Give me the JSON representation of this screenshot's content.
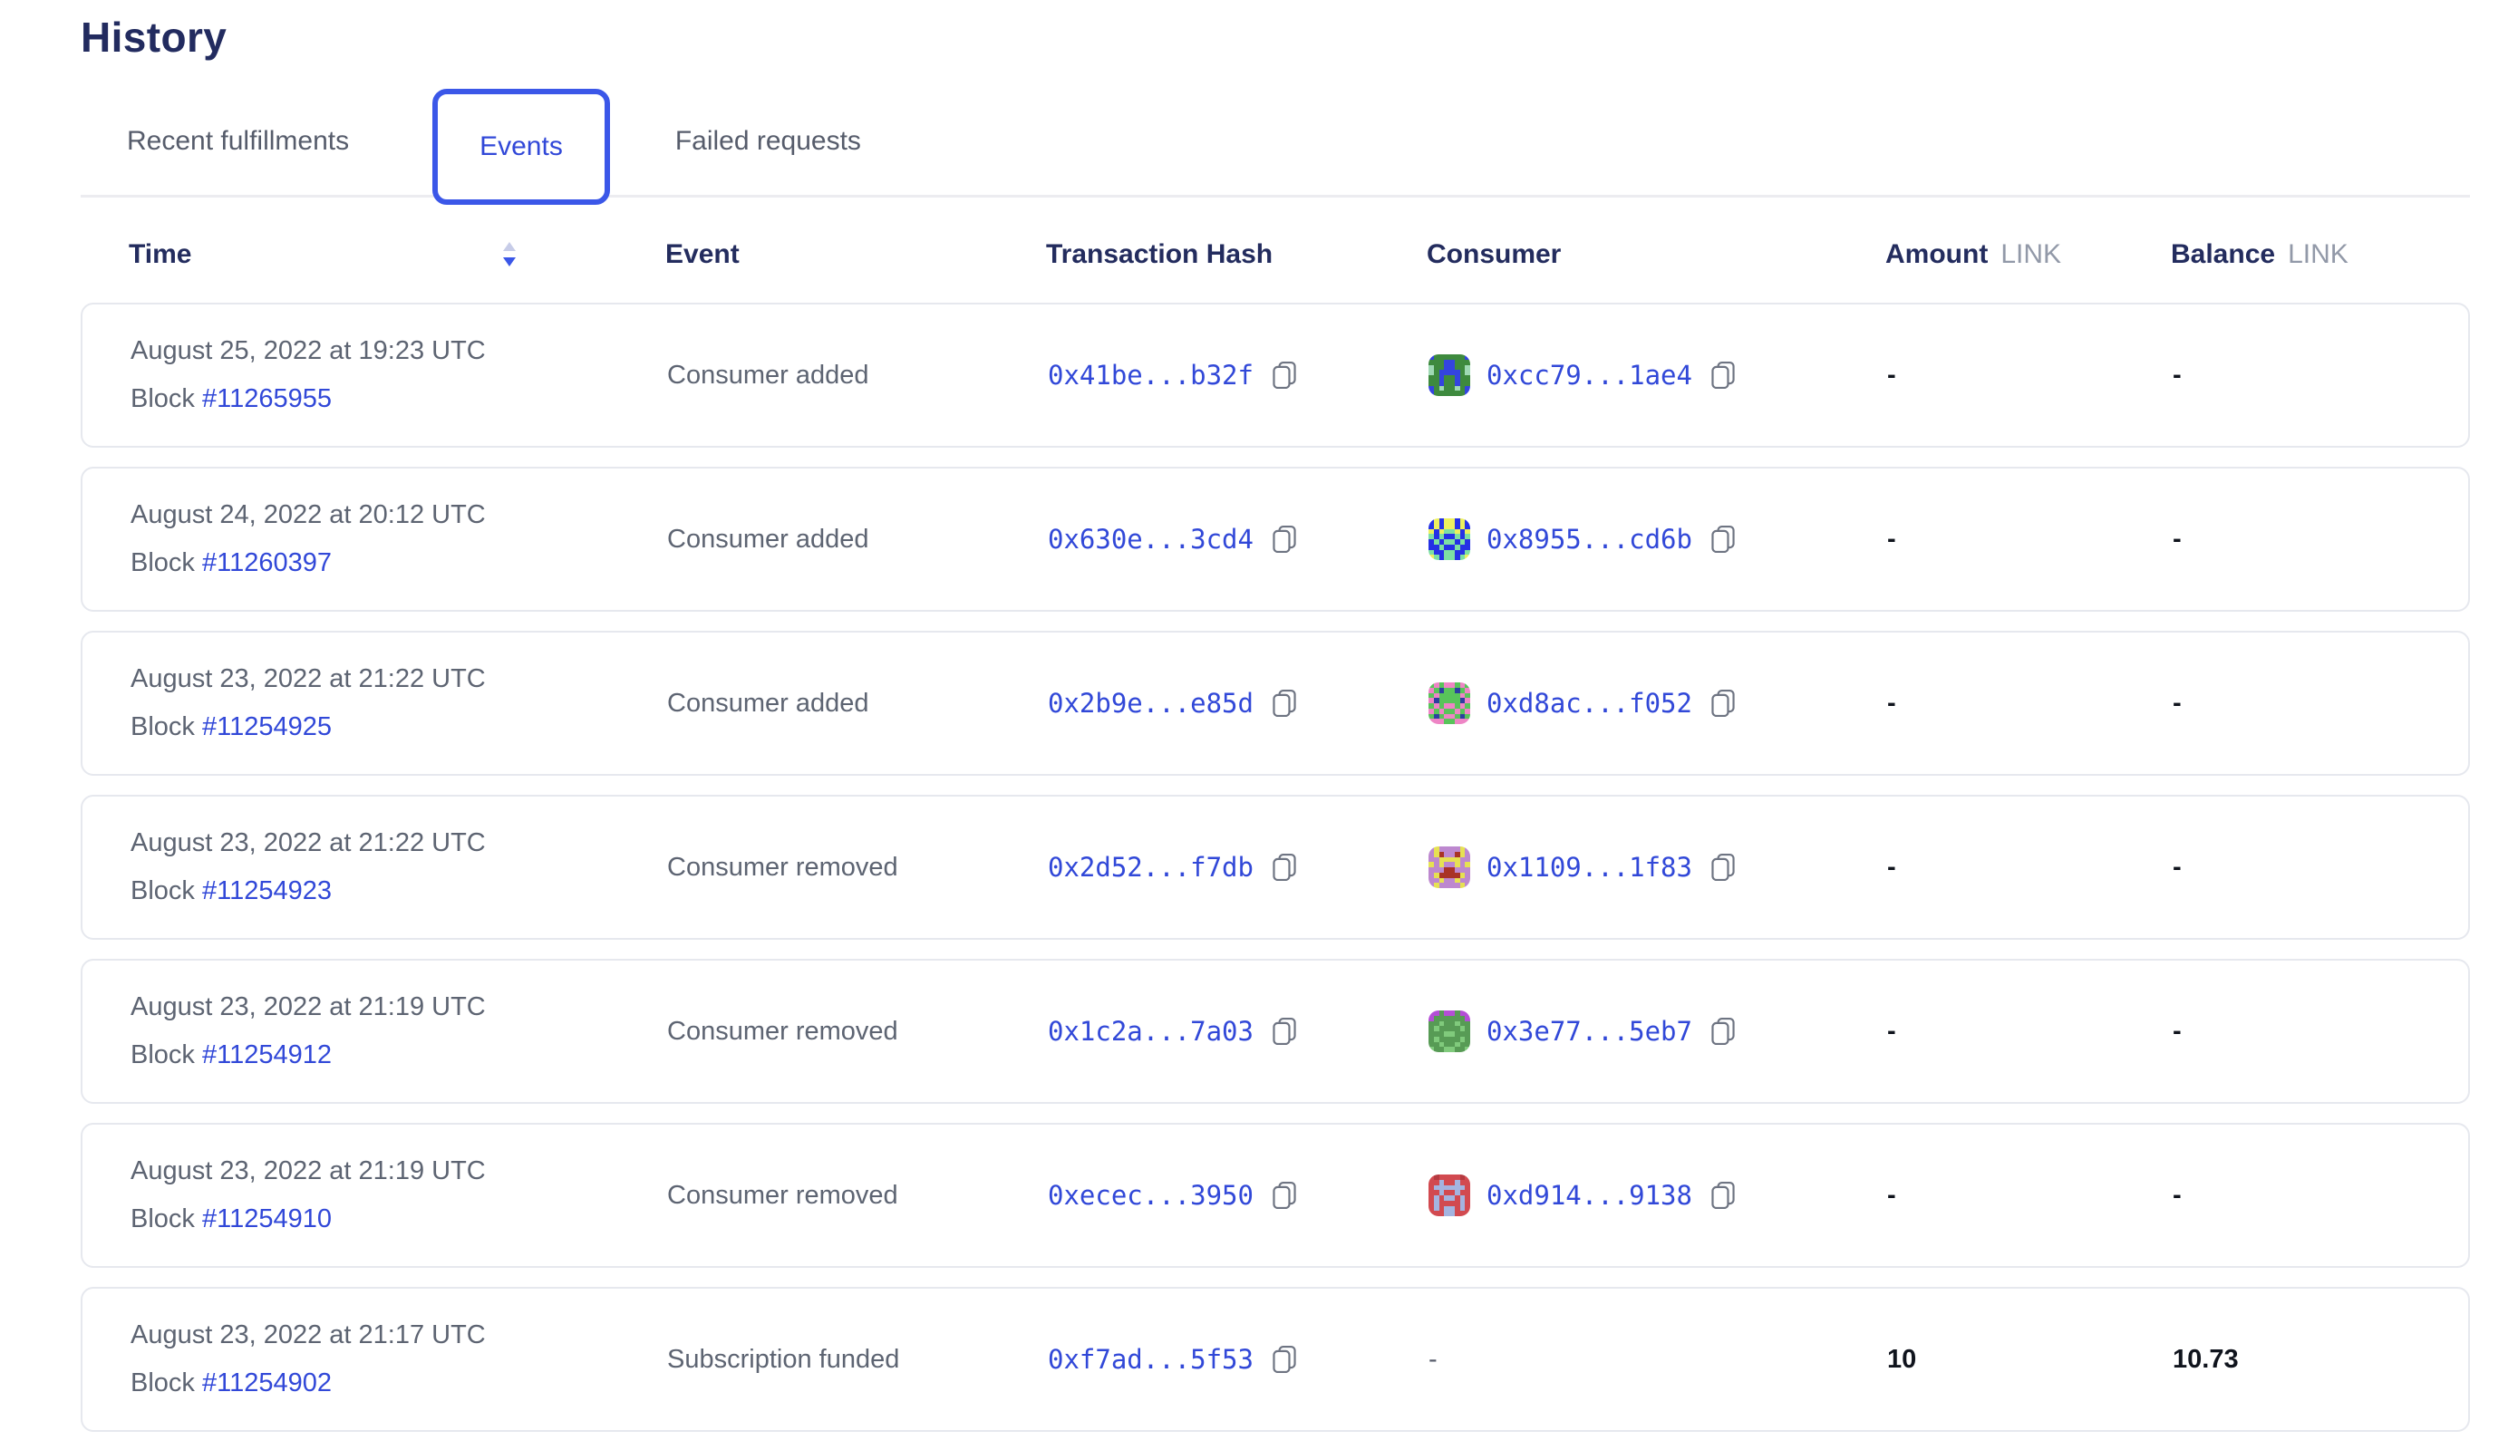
{
  "title": "History",
  "tabs": [
    {
      "id": "recent-fulfillments",
      "label": "Recent fulfillments",
      "active": false
    },
    {
      "id": "events",
      "label": "Events",
      "active": true
    },
    {
      "id": "failed-requests",
      "label": "Failed requests",
      "active": false
    }
  ],
  "colors": {
    "accent_blue": "#3148d8",
    "tab_border_blue": "#3b57e8",
    "heading_navy": "#222b5f",
    "muted_gray": "#5d6472"
  },
  "table": {
    "block_label": "Block",
    "headers": {
      "time": "Time",
      "event": "Event",
      "transaction_hash": "Transaction Hash",
      "consumer": "Consumer",
      "amount": "Amount",
      "amount_unit": "LINK",
      "balance": "Balance",
      "balance_unit": "LINK"
    },
    "sort": {
      "column": "time",
      "direction": "descending"
    },
    "rows": [
      {
        "date": "August 25, 2022 at 19:23 UTC",
        "block": "#11265955",
        "event": "Consumer added",
        "tx_hash": "0x41be...b32f",
        "consumer": {
          "address": "0xcc79...1ae4",
          "avatar": {
            "bg": "#3e8a3e",
            "color": "#3444df",
            "spot": "#9fd9b4",
            "grid": [
              "cbbbbbbc",
              "bbbccbbb",
              "sbbccbbs",
              "sbccccbs",
              "bbcbbcbb",
              "bbcbbcbb",
              "cbsbbsbc",
              "cbbbbbbc"
            ]
          }
        },
        "amount": "-",
        "balance": "-"
      },
      {
        "date": "August 24, 2022 at 20:12 UTC",
        "block": "#11260397",
        "event": "Consumer added",
        "tx_hash": "0x630e...3cd4",
        "consumer": {
          "address": "0x8955...cd6b",
          "avatar": {
            "bg": "#7de0a3",
            "color": "#2531e5",
            "spot": "#edf05e",
            "grid": [
              "cscsscsc",
              "cscsscsc",
              "scsbbscs",
              "bcbccbcb",
              "cbcbbcbc",
              "ccbccbcc",
              "bccbbccb",
              "sbcbbcbs"
            ]
          }
        },
        "amount": "-",
        "balance": "-"
      },
      {
        "date": "August 23, 2022 at 21:22 UTC",
        "block": "#11254925",
        "event": "Consumer added",
        "tx_hash": "0x2b9e...e85d",
        "consumer": {
          "address": "0xd8ac...f052",
          "avatar": {
            "bg": "#58c45a",
            "color": "#2c3f9f",
            "spot": "#ee85c5",
            "grid": [
              "bsbssbsb",
              "sbcbbcbs",
              "bsbbbbsb",
              "scbbbbcs",
              "bsbssbsb",
              "sbsbbsbs",
              "bcbssbcb",
              "sssbbsss"
            ]
          }
        },
        "amount": "-",
        "balance": "-"
      },
      {
        "date": "August 23, 2022 at 21:22 UTC",
        "block": "#11254923",
        "event": "Consumer removed",
        "tx_hash": "0x2d52...f7db",
        "consumer": {
          "address": "0x1109...1f83",
          "avatar": {
            "bg": "#bd88cf",
            "color": "#e6e153",
            "spot": "#a93326",
            "grid": [
              "bcbbbbcb",
              "bcsbbscb",
              "bbccccbb",
              "cbcbbcbc",
              "bbbssbbb",
              "bcsssscb",
              "bbcbbcbb",
              "bcbbbbcb"
            ]
          }
        },
        "amount": "-",
        "balance": "-"
      },
      {
        "date": "August 23, 2022 at 21:19 UTC",
        "block": "#11254912",
        "event": "Consumer removed",
        "tx_hash": "0x1c2a...7a03",
        "consumer": {
          "address": "0x3e77...5eb7",
          "avatar": {
            "bg": "#579b55",
            "color": "#b44ed6",
            "spot": "#80ca7c",
            "grid": [
              "ccbccbcc",
              "cbbbbbbc",
              "bbsbbsbb",
              "bsbbbbsb",
              "bbbssbbb",
              "bsbbbbsb",
              "bbsbbsbb",
              "sbbssbbs"
            ]
          }
        },
        "amount": "-",
        "balance": "-"
      },
      {
        "date": "August 23, 2022 at 21:19 UTC",
        "block": "#11254910",
        "event": "Consumer removed",
        "tx_hash": "0xecec...3950",
        "consumer": {
          "address": "0xd914...9138",
          "avatar": {
            "bg": "#d24a50",
            "color": "#a4b4e0",
            "spot": "#b53a40",
            "grid": [
              "bsbbbbsb",
              "bbcbbcbb",
              "bccccccb",
              "bbcbbcbb",
              "bcbccbcb",
              "bcbbbbcb",
              "bcbccbcb",
              "bbbccbbb"
            ]
          }
        },
        "amount": "-",
        "balance": "-"
      },
      {
        "date": "August 23, 2022 at 21:17 UTC",
        "block": "#11254902",
        "event": "Subscription funded",
        "tx_hash": "0xf7ad...5f53",
        "consumer": null,
        "consumer_dash": "-",
        "amount": "10",
        "balance": "10.73"
      }
    ]
  }
}
